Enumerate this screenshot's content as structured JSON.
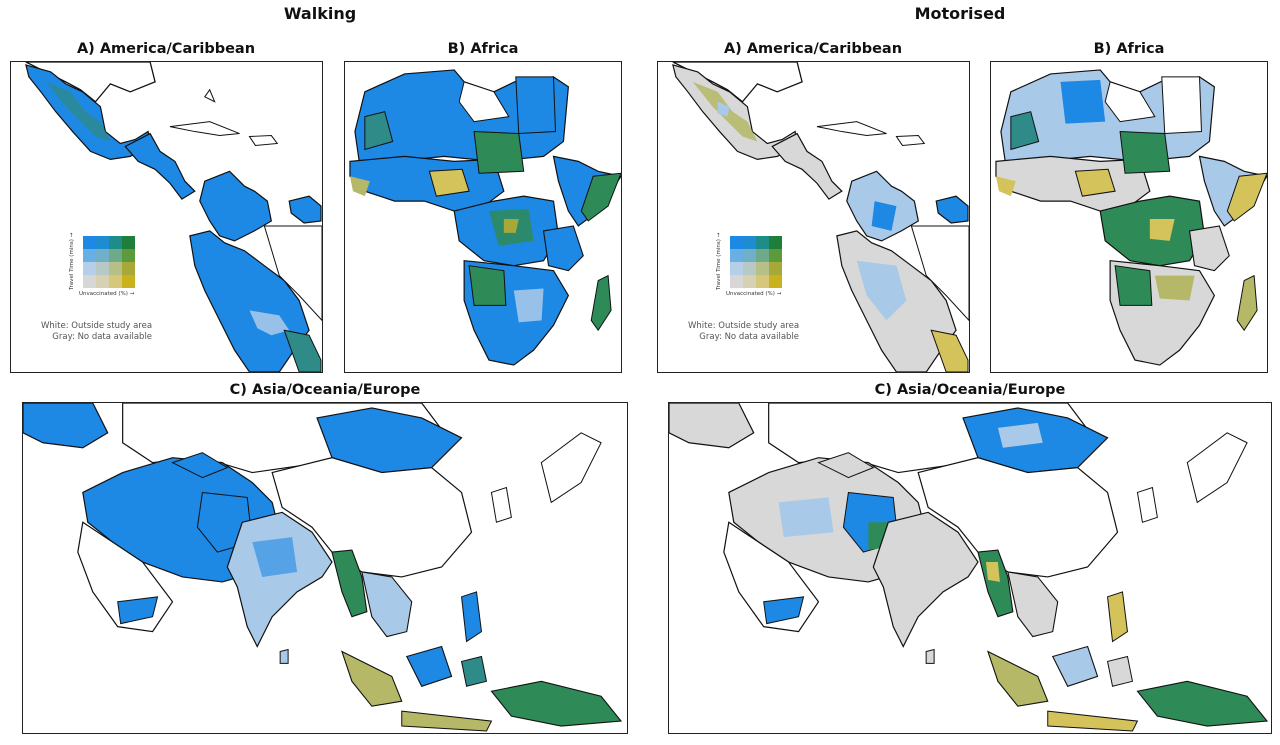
{
  "columns": {
    "left_title": "Walking",
    "right_title": "Motorised"
  },
  "panels": {
    "walk_america": "A) America/Caribbean",
    "walk_africa": "B) Africa",
    "walk_asia": "C) Asia/Oceania/Europe",
    "motor_america": "A) America/Caribbean",
    "motor_africa": "B) Africa",
    "motor_asia": "C) Asia/Oceania/Europe"
  },
  "legend": {
    "y_axis": "Travel Time (mins) →",
    "x_axis": "Unvaccinated (%) →",
    "note_white": "White: Outside study area",
    "note_gray": "Gray: No data available",
    "colors": [
      [
        "#1e88e5",
        "#1f8bd0",
        "#1e8d8a",
        "#1e7e3a"
      ],
      [
        "#6aaee6",
        "#6fb0c8",
        "#6ea98a",
        "#5d9a3c"
      ],
      [
        "#b5cfe8",
        "#b6c9c4",
        "#b5bf86",
        "#a6a837"
      ],
      [
        "#d7d7d7",
        "#d6d1b2",
        "#d6c77a",
        "#c9b21e"
      ]
    ]
  },
  "colors": {
    "blue": "#1e88e5",
    "light_blue": "#a9c9e8",
    "green": "#2e8b57",
    "olive": "#b5b866",
    "yellow": "#d4c25a",
    "gray": "#d8d8d8",
    "outline": "#111111"
  }
}
